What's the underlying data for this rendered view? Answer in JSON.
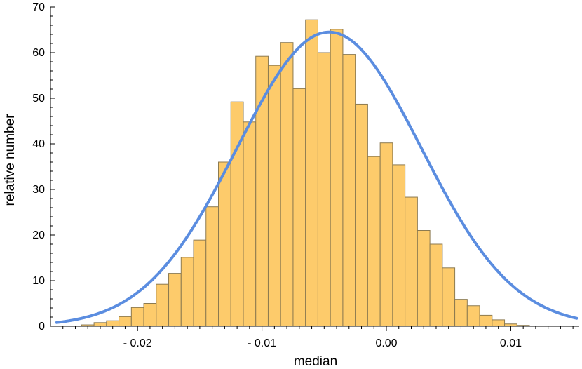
{
  "chart_data": {
    "type": "bar",
    "title": "",
    "xlabel": "median",
    "ylabel": "relative number",
    "xlim": [
      -0.027,
      0.0155
    ],
    "ylim": [
      0,
      70
    ],
    "grid": false,
    "x_ticks": [
      {
        "value": -0.02,
        "label": "- 0.02"
      },
      {
        "value": -0.01,
        "label": "- 0.01"
      },
      {
        "value": 0.0,
        "label": "0.00"
      },
      {
        "value": 0.01,
        "label": "0.01"
      }
    ],
    "y_ticks": [
      0,
      10,
      20,
      30,
      40,
      50,
      60,
      70
    ],
    "bin_width": 0.001,
    "bin_starts": [
      -0.0245,
      -0.0235,
      -0.0225,
      -0.0215,
      -0.0205,
      -0.0195,
      -0.0185,
      -0.0175,
      -0.0165,
      -0.0155,
      -0.0145,
      -0.0135,
      -0.0125,
      -0.0115,
      -0.0105,
      -0.0095,
      -0.0085,
      -0.0075,
      -0.0065,
      -0.0055,
      -0.0045,
      -0.0035,
      -0.0025,
      -0.0015,
      -0.0005,
      0.0005,
      0.0015,
      0.0025,
      0.0035,
      0.0045,
      0.0055,
      0.0065,
      0.0075,
      0.0085,
      0.0095,
      0.0105,
      0.0115,
      0.0125,
      0.0135
    ],
    "values": [
      0.3,
      0.8,
      1.2,
      2.1,
      4.1,
      5.0,
      9.2,
      11.6,
      15.1,
      18.9,
      26.2,
      36.0,
      49.2,
      44.8,
      59.2,
      57.2,
      62.2,
      52.1,
      67.2,
      60.0,
      65.1,
      59.6,
      48.7,
      37.2,
      40.2,
      35.4,
      28.3,
      21.0,
      18.0,
      12.8,
      5.9,
      4.5,
      2.4,
      1.4,
      0.5,
      0.2,
      0.0,
      0.0,
      0.0
    ],
    "series": [
      {
        "type": "bar",
        "values_ref": "values",
        "color": "#FDCB6B",
        "edge_color": "#8C7A50"
      },
      {
        "type": "line",
        "kind": "normal-fit",
        "mean": -0.0046,
        "sd": 0.0074,
        "peak": 64.5,
        "color": "#5B8DE0"
      }
    ]
  }
}
